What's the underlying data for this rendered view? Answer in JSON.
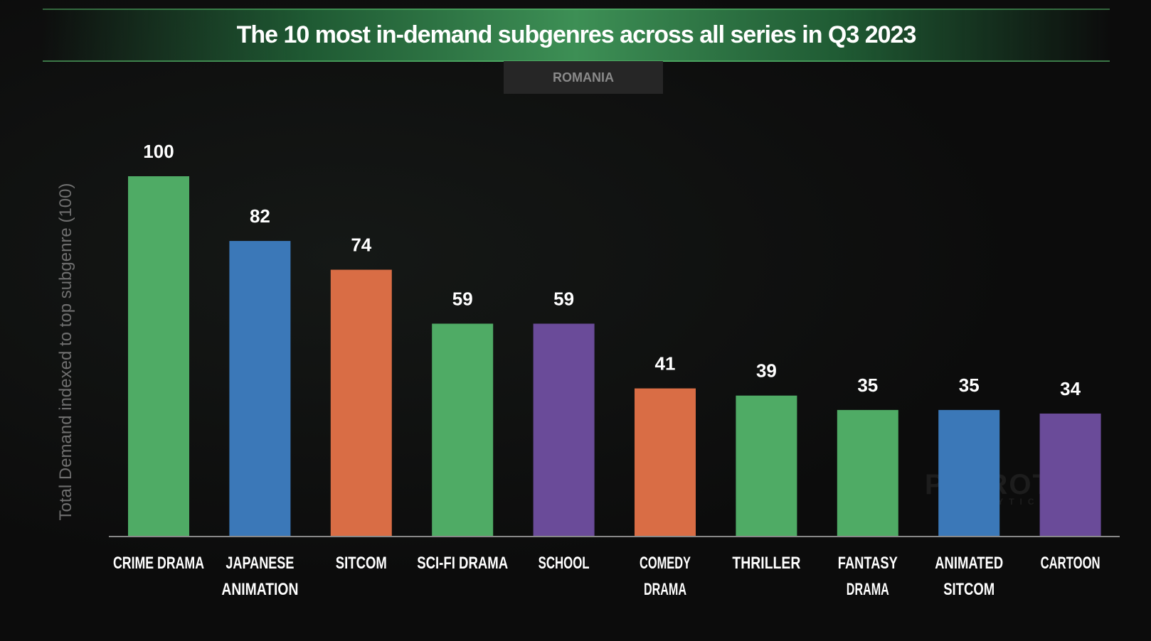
{
  "title": "The 10 most in-demand subgenres across all series in Q3 2023",
  "region": "ROMANIA",
  "watermark": {
    "name": "PARROT",
    "sub": "ANALYTICS"
  },
  "chart_data": {
    "type": "bar",
    "title": "The 10 most in-demand subgenres across all series in Q3 2023",
    "ylabel": "Total Demand indexed to top subgenre (100)",
    "xlabel": "",
    "ylim": [
      0,
      100
    ],
    "grid": false,
    "categories": [
      [
        "CRIME DRAMA"
      ],
      [
        "JAPANESE",
        "ANIMATION"
      ],
      [
        "SITCOM"
      ],
      [
        "SCI-FI DRAMA"
      ],
      [
        "SCHOOL"
      ],
      [
        "COMEDY",
        "DRAMA"
      ],
      [
        "THRILLER"
      ],
      [
        "FANTASY",
        "DRAMA"
      ],
      [
        "ANIMATED",
        "SITCOM"
      ],
      [
        "CARTOON"
      ]
    ],
    "values": [
      100,
      82,
      74,
      59,
      59,
      41,
      39,
      35,
      35,
      34
    ],
    "colors": [
      "#4fab65",
      "#3b78b8",
      "#d96d45",
      "#4fab65",
      "#6a4b99",
      "#d96d45",
      "#4fab65",
      "#4fab65",
      "#3b78b8",
      "#6a4b99"
    ]
  }
}
